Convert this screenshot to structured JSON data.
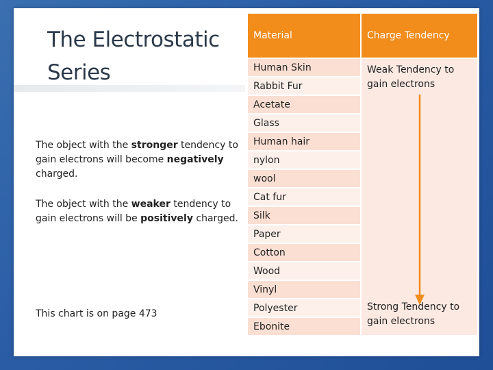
{
  "title": "The Electrostatic Series",
  "notes": {
    "negative": {
      "p1": "The object with the ",
      "b1": "stronger",
      "p2": " tendency to gain electrons will become ",
      "b2": "negatively",
      "p3": " charged."
    },
    "positive": {
      "p1": "The object with the ",
      "b1": "weaker",
      "p2": " tendency to gain electrons will be ",
      "b2": "positively",
      "p3": " charged."
    },
    "page_ref": "This chart is on page 473"
  },
  "table": {
    "headers": [
      "Material",
      "Charge Tendency"
    ],
    "materials": [
      "Human Skin",
      "Rabbit Fur",
      "Acetate",
      "Glass",
      "Human hair",
      "nylon",
      "wool",
      "Cat fur",
      "Silk",
      "Paper",
      "Cotton",
      "Wood",
      "Vinyl",
      "Polyester",
      "Ebonite"
    ],
    "weak": "Weak Tendency to gain electrons",
    "strong": "Strong Tendency to gain electrons"
  },
  "colors": {
    "header": "#f28c1b",
    "arrow": "#f28c1b",
    "row_dark": "#fbdfd3",
    "row_light": "#fdf0ea"
  }
}
